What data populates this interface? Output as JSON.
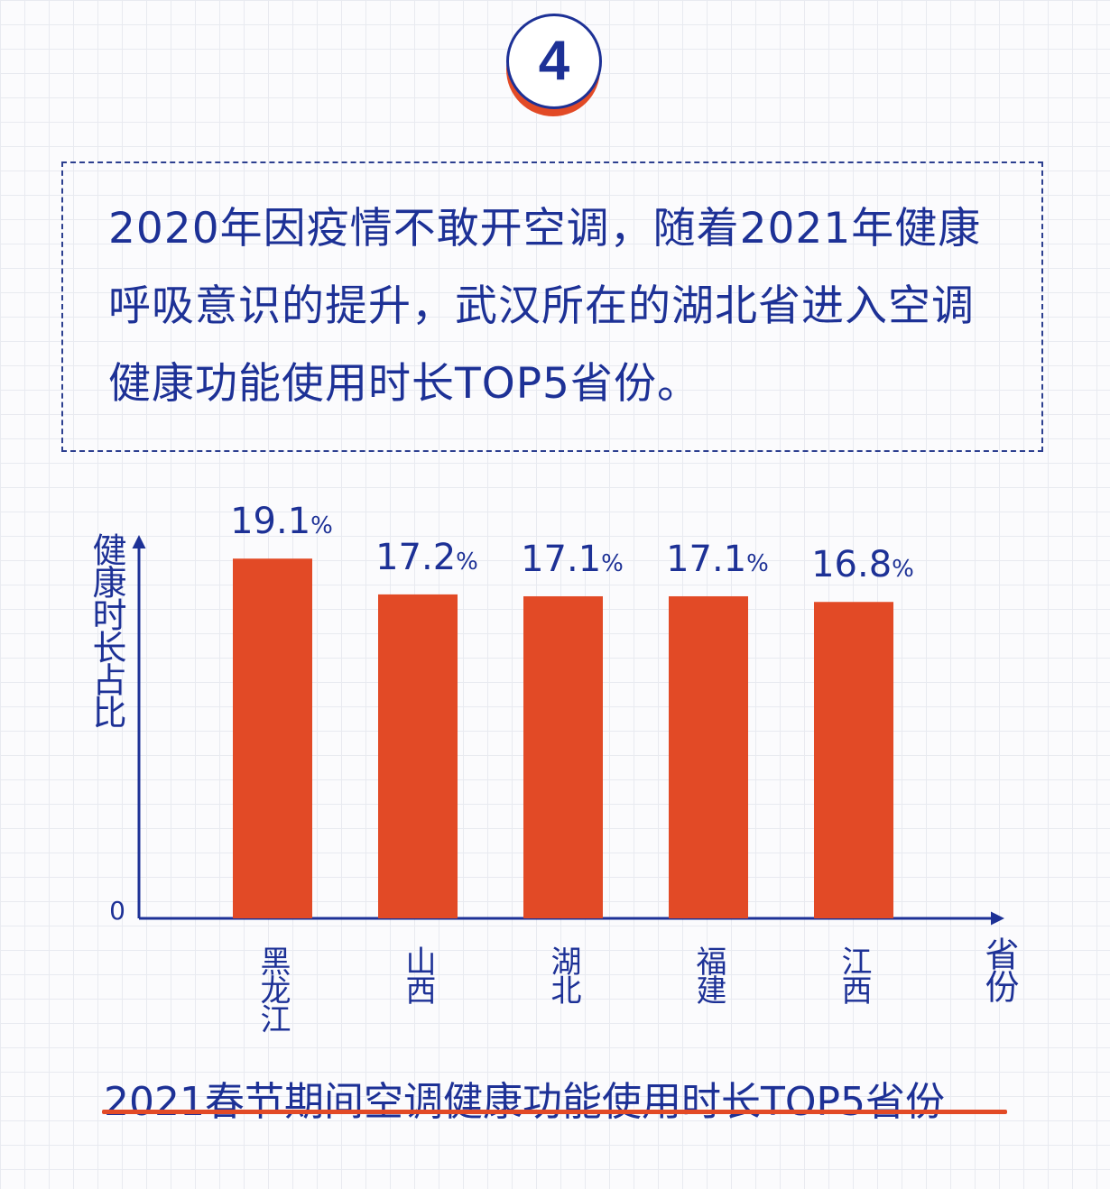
{
  "badge": {
    "number": "4"
  },
  "note": {
    "text": "2020年因疫情不敢开空调，随着2021年健康呼吸意识的提升，武汉所在的湖北省进入空调健康功能使用时长TOP5省份。"
  },
  "chart_data": {
    "type": "bar",
    "title": "2021春节期间空调健康功能使用时长TOP5省份",
    "ylabel": "健康时长占比",
    "xlabel": "省份",
    "y_zero_label": "0",
    "unit": "%",
    "ylim": [
      0,
      20.5
    ],
    "grid": false,
    "bar_color": "#e24a26",
    "axis_color": "#1d3196",
    "categories": [
      "黑龙江",
      "山西",
      "湖北",
      "福建",
      "江西"
    ],
    "values": [
      19.1,
      17.2,
      17.1,
      17.1,
      16.8
    ],
    "value_labels": [
      "19.1",
      "17.2",
      "17.1",
      "17.1",
      "16.8"
    ]
  }
}
